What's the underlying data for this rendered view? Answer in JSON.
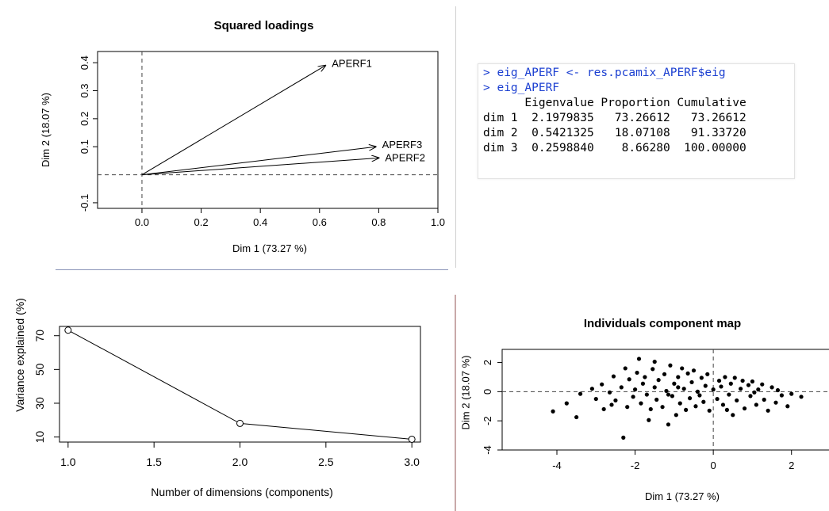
{
  "colors": {
    "prompt": "#1b3fd1",
    "axis": "#000000",
    "dashed": "#444444",
    "points": "#000000"
  },
  "loadings_plot": {
    "title": "Squared loadings",
    "xlabel": "Dim 1 (73.27 %)",
    "ylabel": "Dim 2 (18.07 %)",
    "chart_data": {
      "type": "scatter",
      "title": "Squared loadings",
      "xlabel": "Dim 1 (73.27 %)",
      "ylabel": "Dim 2 (18.07 %)",
      "xlim": [
        -0.15,
        1.0
      ],
      "ylim": [
        -0.12,
        0.44
      ],
      "xticks": [
        0.0,
        0.2,
        0.4,
        0.6,
        0.8,
        1.0
      ],
      "yticks": [
        -0.1,
        0.1,
        0.2,
        0.3,
        0.4
      ],
      "arrows": [
        {
          "label": "APERF1",
          "x": 0.62,
          "y": 0.39
        },
        {
          "label": "APERF3",
          "x": 0.79,
          "y": 0.1
        },
        {
          "label": "APERF2",
          "x": 0.8,
          "y": 0.06
        }
      ],
      "reference_lines": {
        "x": 0,
        "y": 0
      }
    }
  },
  "console": {
    "lines": [
      {
        "prompt": "> ",
        "text": "eig_APERF <- res.pcamix_APERF$eig"
      },
      {
        "prompt": "> ",
        "text": "eig_APERF"
      },
      {
        "prompt": "",
        "text": "      Eigenvalue Proportion Cumulative"
      },
      {
        "prompt": "",
        "text": "dim 1  2.1979835   73.26612   73.26612"
      },
      {
        "prompt": "",
        "text": "dim 2  0.5421325   18.07108   91.33720"
      },
      {
        "prompt": "",
        "text": "dim 3  0.2598840    8.66280  100.00000"
      }
    ],
    "chart_data": {
      "type": "table",
      "columns": [
        "Eigenvalue",
        "Proportion",
        "Cumulative"
      ],
      "rows": [
        {
          "name": "dim 1",
          "values": [
            2.1979835,
            73.26612,
            73.26612
          ]
        },
        {
          "name": "dim 2",
          "values": [
            0.5421325,
            18.07108,
            91.3372
          ]
        },
        {
          "name": "dim 3",
          "values": [
            0.259884,
            8.6628,
            100.0
          ]
        }
      ]
    }
  },
  "scree_plot": {
    "xlabel": "Number of dimensions (components)",
    "ylabel": "Variance explained (%)",
    "chart_data": {
      "type": "line",
      "xlabel": "Number of dimensions (components)",
      "ylabel": "Variance explained (%)",
      "x": [
        1,
        2,
        3
      ],
      "y": [
        73.27,
        18.07,
        8.66
      ],
      "xlim": [
        0.95,
        3.05
      ],
      "ylim": [
        7,
        75.5
      ],
      "xticks": [
        1.0,
        1.5,
        2.0,
        2.5,
        3.0
      ],
      "yticks": [
        10,
        30,
        50,
        70
      ],
      "markers": "open-circle"
    }
  },
  "individuals_plot": {
    "title": "Individuals component map",
    "xlabel": "Dim 1 (73.27 %)",
    "ylabel": "Dim 2 (18.07 %)",
    "chart_data": {
      "type": "scatter",
      "title": "Individuals component map",
      "xlabel": "Dim 1 (73.27 %)",
      "ylabel": "Dim 2 (18.07 %)",
      "xlim": [
        -5.4,
        3.0
      ],
      "ylim": [
        -4.0,
        2.9
      ],
      "xticks": [
        -4,
        -2,
        0,
        2
      ],
      "yticks": [
        -4,
        -2,
        0,
        2
      ],
      "reference_lines": {
        "x": 0,
        "y": 0
      },
      "points": [
        [
          -4.1,
          -1.35
        ],
        [
          -3.75,
          -0.8
        ],
        [
          -3.5,
          -1.75
        ],
        [
          -3.4,
          -0.15
        ],
        [
          -3.1,
          0.2
        ],
        [
          -3.0,
          -0.5
        ],
        [
          -2.85,
          0.5
        ],
        [
          -2.8,
          -1.2
        ],
        [
          -2.65,
          -0.05
        ],
        [
          -2.55,
          1.05
        ],
        [
          -2.5,
          -0.6
        ],
        [
          -2.35,
          0.3
        ],
        [
          -2.3,
          -3.15
        ],
        [
          -2.25,
          1.6
        ],
        [
          -2.2,
          -1.05
        ],
        [
          -2.15,
          0.85
        ],
        [
          -2.05,
          -0.35
        ],
        [
          -2.0,
          0.15
        ],
        [
          -1.95,
          1.3
        ],
        [
          -1.9,
          2.25
        ],
        [
          -1.85,
          -0.8
        ],
        [
          -1.8,
          0.55
        ],
        [
          -1.75,
          1.0
        ],
        [
          -1.7,
          -0.2
        ],
        [
          -1.65,
          -1.95
        ],
        [
          -1.6,
          -1.2
        ],
        [
          -1.55,
          1.55
        ],
        [
          -1.5,
          0.3
        ],
        [
          -1.5,
          2.05
        ],
        [
          -1.45,
          -0.55
        ],
        [
          -1.4,
          0.8
        ],
        [
          -1.3,
          -1.05
        ],
        [
          -1.25,
          1.2
        ],
        [
          -1.2,
          0.05
        ],
        [
          -1.15,
          -2.25
        ],
        [
          -1.1,
          1.8
        ],
        [
          -1.05,
          -0.3
        ],
        [
          -1.0,
          0.55
        ],
        [
          -0.95,
          -1.6
        ],
        [
          -0.9,
          1.0
        ],
        [
          -0.85,
          -0.8
        ],
        [
          -0.8,
          1.6
        ],
        [
          -0.75,
          0.2
        ],
        [
          -0.7,
          -1.25
        ],
        [
          -0.65,
          1.25
        ],
        [
          -0.6,
          -0.45
        ],
        [
          -0.55,
          0.65
        ],
        [
          -0.5,
          1.45
        ],
        [
          -0.45,
          -1.0
        ],
        [
          -0.4,
          0.0
        ],
        [
          -0.35,
          -0.25
        ],
        [
          -0.3,
          0.95
        ],
        [
          -0.25,
          -0.7
        ],
        [
          -0.2,
          0.4
        ],
        [
          -0.15,
          1.2
        ],
        [
          -0.1,
          -1.3
        ],
        [
          0.0,
          0.15
        ],
        [
          0.1,
          -0.5
        ],
        [
          0.15,
          0.75
        ],
        [
          0.2,
          0.35
        ],
        [
          0.25,
          -0.9
        ],
        [
          0.3,
          1.0
        ],
        [
          0.4,
          -0.2
        ],
        [
          0.45,
          0.55
        ],
        [
          0.5,
          -1.6
        ],
        [
          0.55,
          0.95
        ],
        [
          0.6,
          -0.6
        ],
        [
          0.7,
          0.2
        ],
        [
          0.75,
          0.75
        ],
        [
          0.8,
          -1.15
        ],
        [
          0.9,
          0.45
        ],
        [
          0.95,
          -0.3
        ],
        [
          1.0,
          0.7
        ],
        [
          1.1,
          -0.9
        ],
        [
          1.15,
          0.15
        ],
        [
          1.25,
          0.5
        ],
        [
          1.3,
          -0.55
        ],
        [
          1.4,
          -1.3
        ],
        [
          1.5,
          0.3
        ],
        [
          1.6,
          -0.75
        ],
        [
          1.65,
          0.1
        ],
        [
          1.75,
          -0.25
        ],
        [
          1.9,
          -1.0
        ],
        [
          2.0,
          -0.15
        ],
        [
          2.25,
          -0.35
        ],
        [
          -2.6,
          -0.9
        ],
        [
          -1.15,
          -0.2
        ],
        [
          0.35,
          -1.25
        ],
        [
          -0.9,
          0.3
        ],
        [
          1.05,
          -0.05
        ]
      ]
    }
  }
}
